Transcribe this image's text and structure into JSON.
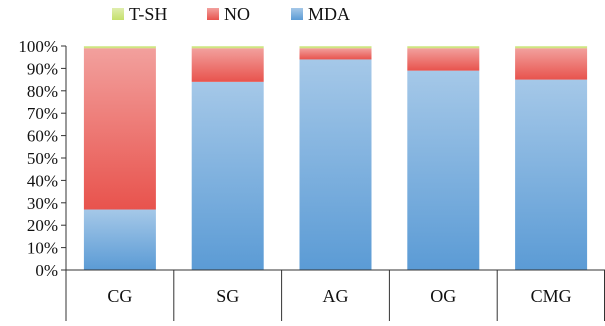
{
  "chart_data": {
    "type": "bar",
    "stacked": true,
    "percent_stacked": true,
    "categories": [
      "CG",
      "SG",
      "AG",
      "OG",
      "CMG"
    ],
    "series": [
      {
        "name": "MDA",
        "color": "#5b9bd5",
        "values": [
          27,
          84,
          94,
          89,
          85
        ]
      },
      {
        "name": "NO",
        "color": "#e8534d",
        "values": [
          72,
          15,
          5,
          10,
          14
        ]
      },
      {
        "name": "T-SH",
        "color": "#c5e06b",
        "values": [
          1,
          1,
          1,
          1,
          1
        ]
      }
    ],
    "legend_order": [
      "T-SH",
      "NO",
      "MDA"
    ],
    "legend_position": "top-left",
    "y_ticks": [
      "0%",
      "10%",
      "20%",
      "30%",
      "40%",
      "50%",
      "60%",
      "70%",
      "80%",
      "90%",
      "100%"
    ],
    "ylim": [
      0,
      100
    ],
    "title": "",
    "xlabel": "",
    "ylabel": "",
    "grid": false
  }
}
